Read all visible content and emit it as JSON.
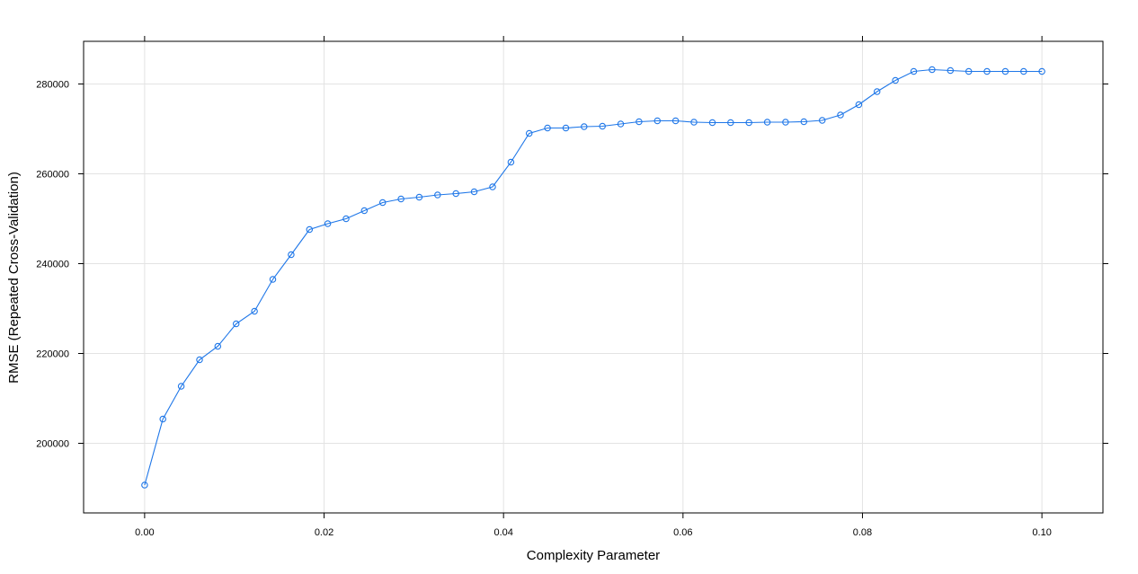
{
  "chart_data": {
    "type": "line",
    "title": "",
    "xlabel": "Complexity Parameter",
    "ylabel": "RMSE (Repeated Cross-Validation)",
    "xlim": [
      -0.0068,
      0.1068
    ],
    "ylim": [
      184500,
      289500
    ],
    "x_ticks": [
      "0.00",
      "0.02",
      "0.04",
      "0.06",
      "0.08",
      "0.10"
    ],
    "y_ticks": [
      "200000",
      "220000",
      "240000",
      "260000",
      "280000"
    ],
    "grid": true,
    "line_color": "#1f77e8",
    "series": [
      {
        "x": [
          0.0,
          0.00204,
          0.00408,
          0.00612,
          0.00816,
          0.0102,
          0.01224,
          0.01429,
          0.01633,
          0.01837,
          0.02041,
          0.02245,
          0.02449,
          0.02653,
          0.02857,
          0.03061,
          0.03265,
          0.03469,
          0.03673,
          0.03878,
          0.04082,
          0.04286,
          0.0449,
          0.04694,
          0.04898,
          0.05102,
          0.05306,
          0.0551,
          0.05714,
          0.05918,
          0.06122,
          0.06327,
          0.06531,
          0.06735,
          0.06939,
          0.07143,
          0.07347,
          0.07551,
          0.07755,
          0.07959,
          0.08163,
          0.08367,
          0.08571,
          0.08776,
          0.0898,
          0.09184,
          0.09388,
          0.09592,
          0.09796,
          0.1
        ],
        "values": [
          190700,
          205400,
          212700,
          218600,
          221600,
          226600,
          229400,
          236500,
          242000,
          247600,
          248900,
          250000,
          251800,
          253600,
          254400,
          254800,
          255300,
          255600,
          256000,
          257100,
          262600,
          269000,
          270200,
          270200,
          270500,
          270600,
          271100,
          271600,
          271800,
          271800,
          271500,
          271400,
          271400,
          271400,
          271500,
          271500,
          271600,
          271900,
          273100,
          275400,
          278300,
          280800,
          282800,
          283200,
          283000,
          282800,
          282800,
          282800,
          282800,
          282800
        ]
      }
    ]
  }
}
